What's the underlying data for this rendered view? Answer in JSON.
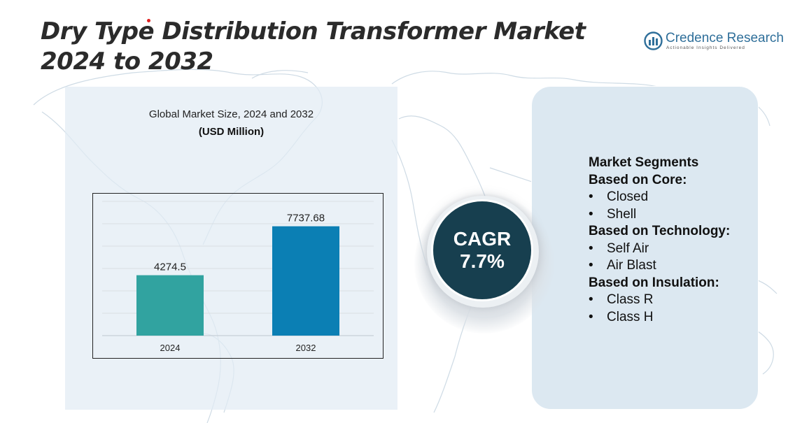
{
  "title": "Dry Type Distribution Transformer Market 2024 to 2032",
  "logo": {
    "name": "Credence Research",
    "tagline": "Actionable Insights Delivered"
  },
  "chart_data": {
    "type": "bar",
    "title": "Global Market Size, 2024 and 2032",
    "unit": "(USD Million)",
    "categories": [
      "2024",
      "2032"
    ],
    "values": [
      4274.5,
      7737.68
    ],
    "value_labels": [
      "4274.5",
      "7737.68"
    ],
    "colors": [
      "#31a3a0",
      "#0b7fb4"
    ],
    "ylim": [
      0,
      9500
    ],
    "grid": true
  },
  "cagr": {
    "label": "CAGR",
    "value": "7.7%"
  },
  "segments": {
    "title": "Market Segments",
    "groups": [
      {
        "heading": "Based on Core:",
        "items": [
          "Closed",
          "Shell"
        ]
      },
      {
        "heading": "Based on Technology:",
        "items": [
          "Self Air",
          "Air Blast"
        ]
      },
      {
        "heading": "Based on Insulation:",
        "items": [
          "Class R",
          "Class H"
        ]
      }
    ]
  },
  "colors": {
    "title": "#2b2b2b",
    "cagr_circle": "#173f4f",
    "panel": "#dce8f1"
  },
  "icons": {
    "logo": "credence-logo-icon",
    "background": "world-map-outline"
  }
}
